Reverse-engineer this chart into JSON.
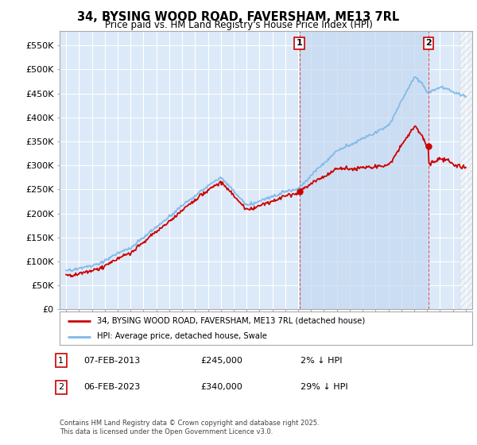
{
  "title": "34, BYSING WOOD ROAD, FAVERSHAM, ME13 7RL",
  "subtitle": "Price paid vs. HM Land Registry's House Price Index (HPI)",
  "xlim_start": 1994.5,
  "xlim_end": 2026.5,
  "ylim_min": 0,
  "ylim_max": 580000,
  "yticks": [
    0,
    50000,
    100000,
    150000,
    200000,
    250000,
    300000,
    350000,
    400000,
    450000,
    500000,
    550000
  ],
  "ytick_labels": [
    "£0",
    "£50K",
    "£100K",
    "£150K",
    "£200K",
    "£250K",
    "£300K",
    "£350K",
    "£400K",
    "£450K",
    "£500K",
    "£550K"
  ],
  "background_color": "#ffffff",
  "plot_bg_color": "#dce9f8",
  "grid_color": "#ffffff",
  "hpi_color": "#7fb8e8",
  "price_color": "#cc0000",
  "shade_color": "#c5d8f0",
  "marker1_x": 2013.1,
  "marker1_y": 245000,
  "marker2_x": 2023.1,
  "marker2_y": 340000,
  "sale1_year": 2013.1,
  "sale2_year": 2023.1,
  "legend_label1": "34, BYSING WOOD ROAD, FAVERSHAM, ME13 7RL (detached house)",
  "legend_label2": "HPI: Average price, detached house, Swale",
  "note1_date": "07-FEB-2013",
  "note1_price": "£245,000",
  "note1_hpi": "2% ↓ HPI",
  "note2_date": "06-FEB-2023",
  "note2_price": "£340,000",
  "note2_hpi": "29% ↓ HPI",
  "footer": "Contains HM Land Registry data © Crown copyright and database right 2025.\nThis data is licensed under the Open Government Licence v3.0."
}
